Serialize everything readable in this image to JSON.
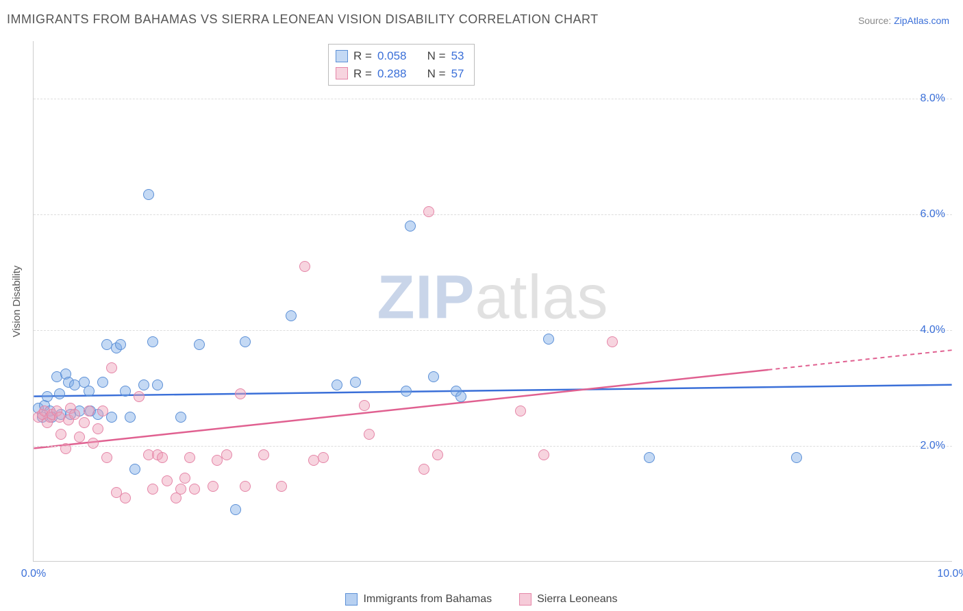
{
  "title": "IMMIGRANTS FROM BAHAMAS VS SIERRA LEONEAN VISION DISABILITY CORRELATION CHART",
  "source_prefix": "Source: ",
  "source_link": "ZipAtlas.com",
  "y_axis_title": "Vision Disability",
  "watermark": {
    "z": "ZIP",
    "rest": "atlas"
  },
  "chart": {
    "type": "scatter",
    "xlim": [
      0,
      10
    ],
    "ylim": [
      0,
      9
    ],
    "xticks": [
      0,
      10
    ],
    "xtick_labels": [
      "0.0%",
      "10.0%"
    ],
    "yticks": [
      2,
      4,
      6,
      8
    ],
    "ytick_labels": [
      "2.0%",
      "4.0%",
      "6.0%",
      "8.0%"
    ],
    "grid_color": "#dddddd",
    "background_color": "#ffffff",
    "axis_color": "#cccccc",
    "tick_label_color": "#3a6fd8",
    "series": [
      {
        "name": "Immigrants from Bahamas",
        "fill": "rgba(124,170,230,0.45)",
        "stroke": "#5b8fd6",
        "line_color": "#3a6fd8",
        "r_value": "0.058",
        "n_value": "53",
        "trend": {
          "y0": 2.85,
          "y1": 3.05,
          "dash_from_x": null
        },
        "points": [
          [
            0.05,
            2.65
          ],
          [
            0.1,
            2.5
          ],
          [
            0.12,
            2.7
          ],
          [
            0.15,
            2.85
          ],
          [
            0.18,
            2.6
          ],
          [
            0.2,
            2.5
          ],
          [
            0.25,
            3.2
          ],
          [
            0.28,
            2.9
          ],
          [
            0.3,
            2.55
          ],
          [
            0.35,
            3.25
          ],
          [
            0.38,
            3.1
          ],
          [
            0.4,
            2.55
          ],
          [
            0.45,
            3.05
          ],
          [
            0.5,
            2.6
          ],
          [
            0.55,
            3.1
          ],
          [
            0.6,
            2.95
          ],
          [
            0.62,
            2.6
          ],
          [
            0.7,
            2.55
          ],
          [
            0.75,
            3.1
          ],
          [
            0.8,
            3.75
          ],
          [
            0.85,
            2.5
          ],
          [
            0.9,
            3.7
          ],
          [
            0.95,
            3.75
          ],
          [
            1.0,
            2.95
          ],
          [
            1.05,
            2.5
          ],
          [
            1.1,
            1.6
          ],
          [
            1.2,
            3.05
          ],
          [
            1.25,
            6.35
          ],
          [
            1.3,
            3.8
          ],
          [
            1.35,
            3.05
          ],
          [
            1.6,
            2.5
          ],
          [
            1.8,
            3.75
          ],
          [
            2.2,
            0.9
          ],
          [
            2.3,
            3.8
          ],
          [
            2.8,
            4.25
          ],
          [
            3.3,
            3.05
          ],
          [
            3.5,
            3.1
          ],
          [
            4.05,
            2.95
          ],
          [
            4.1,
            5.8
          ],
          [
            4.35,
            3.2
          ],
          [
            4.6,
            2.95
          ],
          [
            4.65,
            2.85
          ],
          [
            5.6,
            3.85
          ],
          [
            6.7,
            1.8
          ],
          [
            8.3,
            1.8
          ]
        ]
      },
      {
        "name": "Sierra Leoneans",
        "fill": "rgba(238,160,185,0.45)",
        "stroke": "#e585a7",
        "line_color": "#e06090",
        "r_value": "0.288",
        "n_value": "57",
        "trend": {
          "y0": 1.95,
          "y1": 3.65,
          "dash_from_x": 8.0
        },
        "points": [
          [
            0.05,
            2.5
          ],
          [
            0.1,
            2.55
          ],
          [
            0.12,
            2.6
          ],
          [
            0.15,
            2.4
          ],
          [
            0.18,
            2.5
          ],
          [
            0.2,
            2.55
          ],
          [
            0.25,
            2.6
          ],
          [
            0.28,
            2.5
          ],
          [
            0.3,
            2.2
          ],
          [
            0.35,
            1.95
          ],
          [
            0.38,
            2.45
          ],
          [
            0.4,
            2.65
          ],
          [
            0.45,
            2.55
          ],
          [
            0.5,
            2.15
          ],
          [
            0.55,
            2.4
          ],
          [
            0.6,
            2.6
          ],
          [
            0.65,
            2.05
          ],
          [
            0.7,
            2.3
          ],
          [
            0.75,
            2.6
          ],
          [
            0.8,
            1.8
          ],
          [
            0.85,
            3.35
          ],
          [
            0.9,
            1.2
          ],
          [
            1.0,
            1.1
          ],
          [
            1.15,
            2.85
          ],
          [
            1.25,
            1.85
          ],
          [
            1.3,
            1.25
          ],
          [
            1.35,
            1.85
          ],
          [
            1.4,
            1.8
          ],
          [
            1.45,
            1.4
          ],
          [
            1.55,
            1.1
          ],
          [
            1.6,
            1.25
          ],
          [
            1.65,
            1.45
          ],
          [
            1.7,
            1.8
          ],
          [
            1.75,
            1.25
          ],
          [
            1.95,
            1.3
          ],
          [
            2.0,
            1.75
          ],
          [
            2.1,
            1.85
          ],
          [
            2.25,
            2.9
          ],
          [
            2.3,
            1.3
          ],
          [
            2.5,
            1.85
          ],
          [
            2.7,
            1.3
          ],
          [
            2.95,
            5.1
          ],
          [
            3.05,
            1.75
          ],
          [
            3.15,
            1.8
          ],
          [
            3.6,
            2.7
          ],
          [
            3.65,
            2.2
          ],
          [
            4.25,
            1.6
          ],
          [
            4.3,
            6.05
          ],
          [
            4.4,
            1.85
          ],
          [
            5.3,
            2.6
          ],
          [
            5.55,
            1.85
          ],
          [
            6.3,
            3.8
          ]
        ]
      }
    ]
  },
  "stats_labels": {
    "r": "R =",
    "n": "N ="
  },
  "bottom_legend": [
    {
      "label": "Immigrants from Bahamas",
      "fill": "rgba(124,170,230,0.55)",
      "stroke": "#5b8fd6"
    },
    {
      "label": "Sierra Leoneans",
      "fill": "rgba(238,160,185,0.55)",
      "stroke": "#e585a7"
    }
  ]
}
